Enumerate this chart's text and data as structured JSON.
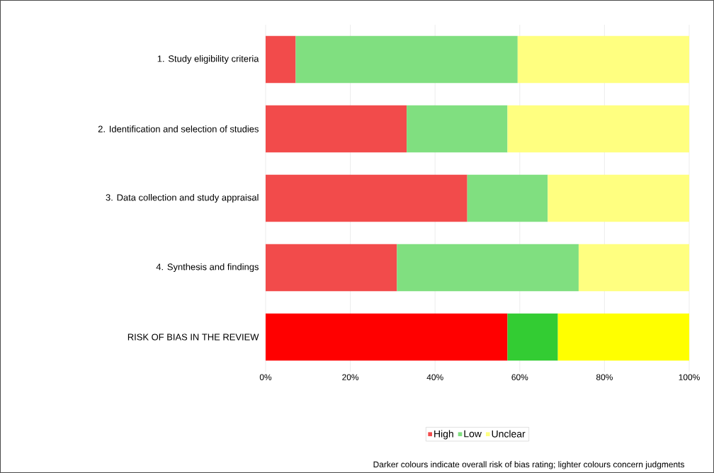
{
  "chart_data": {
    "type": "bar",
    "orientation": "horizontal",
    "stacked": true,
    "categories": [
      "1. Study eligibility criteria",
      "2. Identification and selection of studies",
      "3. Data collection and study appraisal",
      "4. Synthesis and findings",
      "RISK OF BIAS IN THE REVIEW"
    ],
    "series": [
      {
        "name": "High",
        "color": "#f24b4b",
        "colors": [
          "#f24b4b",
          "#f24b4b",
          "#f24b4b",
          "#f24b4b",
          "#ff0000"
        ],
        "values": [
          7.1,
          33.3,
          47.6,
          31.0,
          57.1
        ]
      },
      {
        "name": "Low",
        "color": "#80df80",
        "colors": [
          "#80df80",
          "#80df80",
          "#80df80",
          "#80df80",
          "#33cc33"
        ],
        "values": [
          52.4,
          23.8,
          19.0,
          42.9,
          11.9
        ]
      },
      {
        "name": "Unclear",
        "color": "#ffff80",
        "colors": [
          "#ffff80",
          "#ffff80",
          "#ffff80",
          "#ffff80",
          "#ffff00"
        ],
        "values": [
          40.5,
          42.9,
          33.4,
          26.1,
          31.0
        ]
      }
    ],
    "xlim": [
      0,
      100
    ],
    "xticks": [
      {
        "value": 0,
        "label": "0%"
      },
      {
        "value": 20,
        "label": "20%"
      },
      {
        "value": 40,
        "label": "40%"
      },
      {
        "value": 60,
        "label": "60%"
      },
      {
        "value": 80,
        "label": "80%"
      },
      {
        "value": 100,
        "label": "100%"
      }
    ],
    "grid": "x",
    "legend": "bottom",
    "annotations": [
      "Darker colours indicate overall risk of bias rating; lighter colours concern judgments"
    ]
  }
}
